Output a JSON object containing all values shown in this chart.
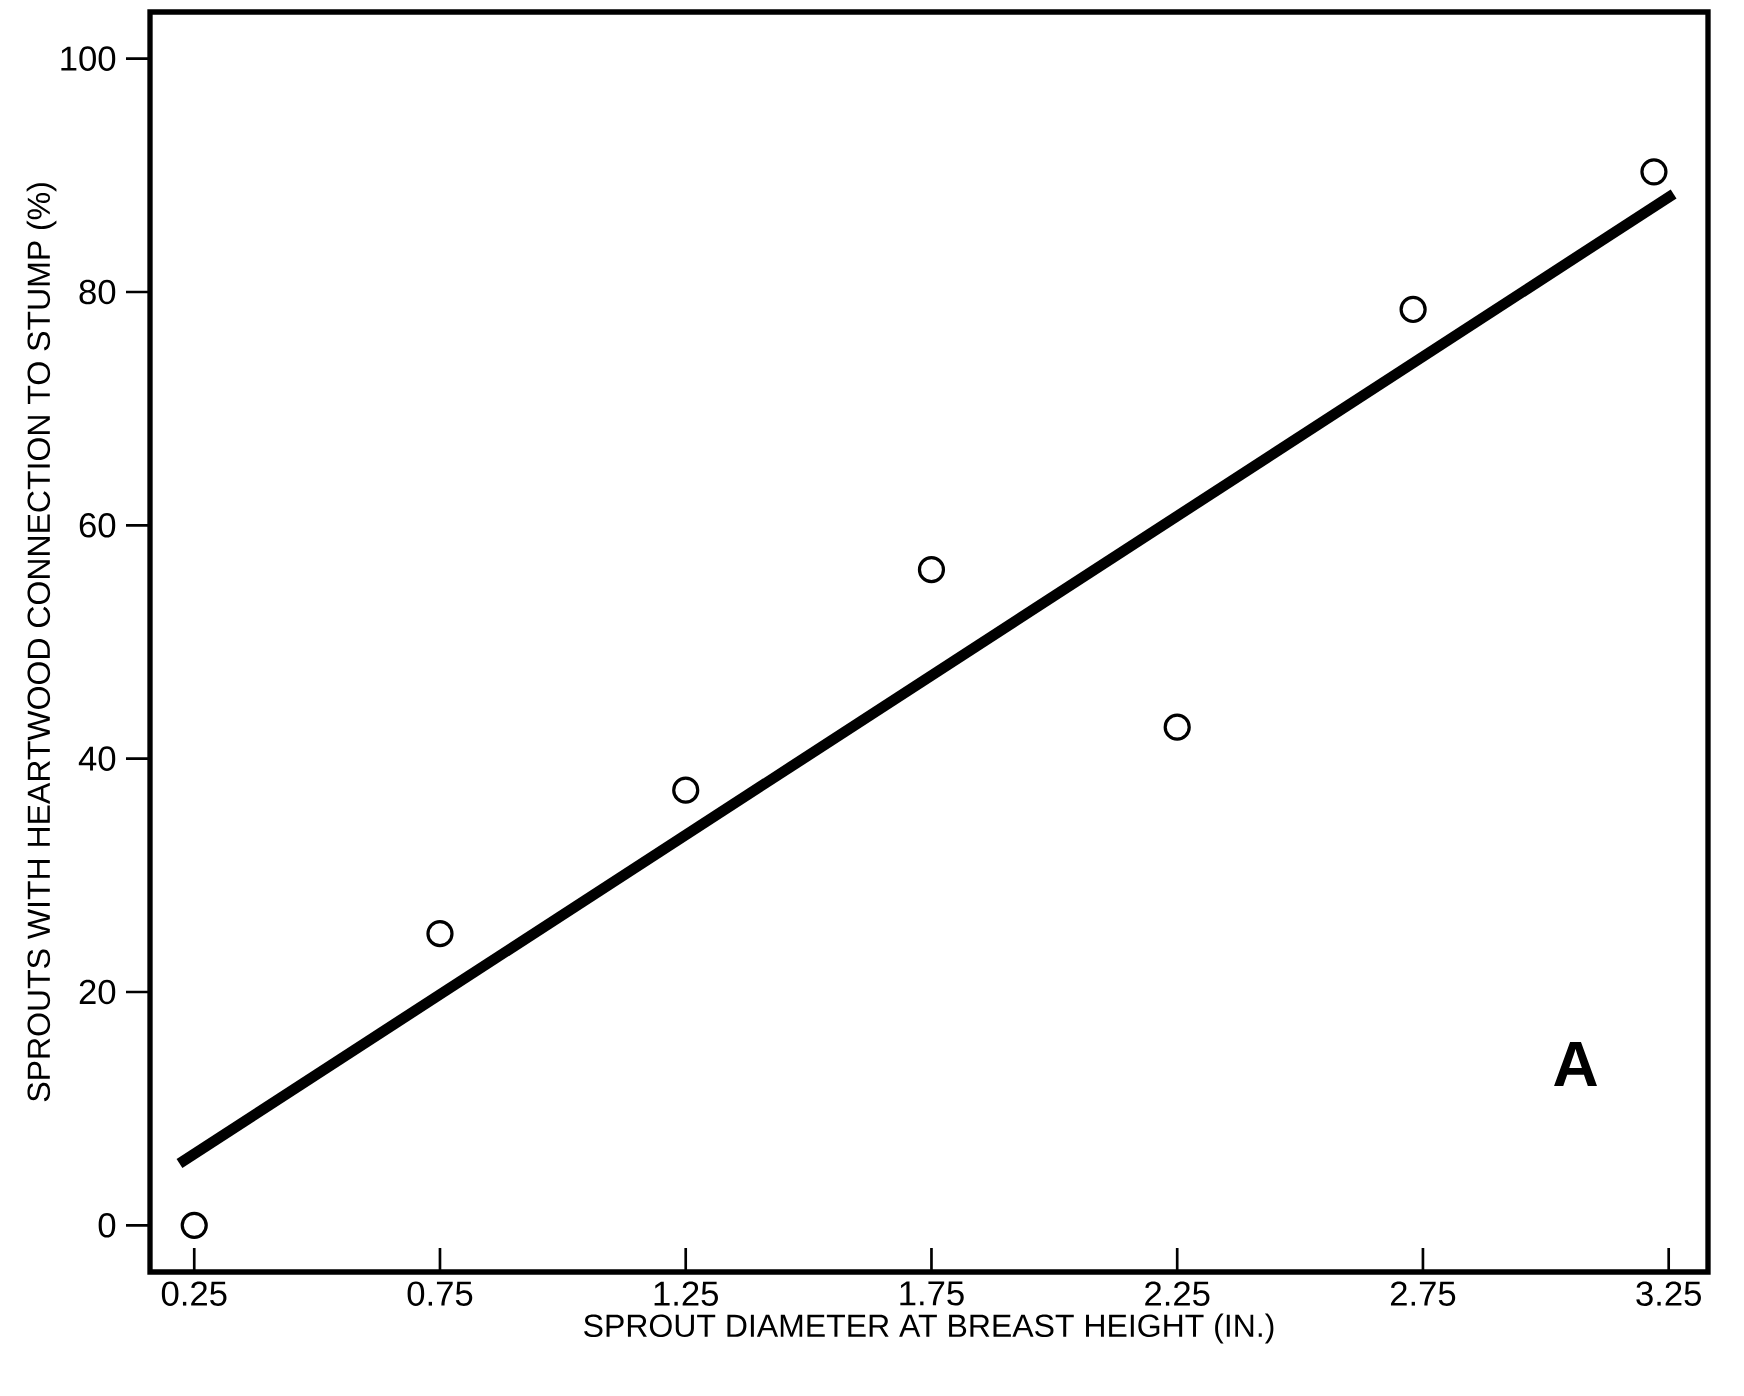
{
  "chart_data": {
    "type": "scatter",
    "xlabel": "SPROUT DIAMETER AT BREAST HEIGHT (IN.)",
    "ylabel": "SPROUTS WITH HEARTWOOD CONNECTION TO STUMP (%)",
    "annotations": [
      "A"
    ],
    "series": [
      {
        "x": [
          0.25,
          0.75,
          1.25,
          1.75,
          2.25,
          2.73,
          3.22
        ],
        "values": [
          0,
          25,
          37.3,
          56.2,
          42.7,
          78.5,
          90.3
        ],
        "color": "#000000",
        "marker": "circle"
      },
      {
        "type": "line",
        "x": [
          0.22,
          3.26
        ],
        "values": [
          5.3,
          88.4
        ],
        "color": "#000000"
      }
    ],
    "xlim": [
      0.16,
      3.33
    ],
    "xticks": [
      0.25,
      0.75,
      1.25,
      1.75,
      2.25,
      2.75,
      3.25
    ],
    "ylim": [
      -4,
      104
    ],
    "yticks": [
      0,
      20,
      40,
      60,
      80,
      100
    ],
    "grid": false
  }
}
